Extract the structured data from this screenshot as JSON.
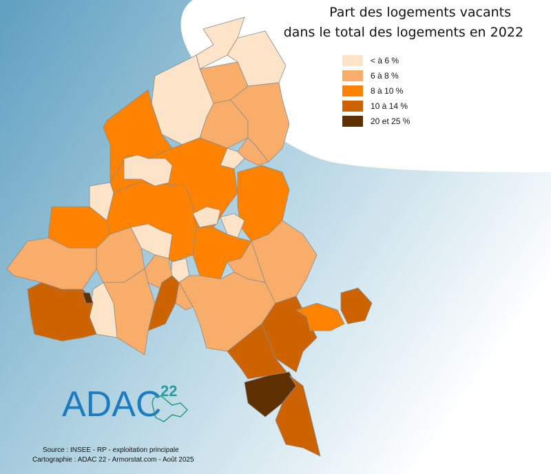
{
  "title_lines": [
    "Part des logements vacants",
    "dans le total des logements en 2022"
  ],
  "legend": [
    {
      "label": "< à 6 %",
      "color": "#fde4c8"
    },
    {
      "label": "6 à 8 %",
      "color": "#f9ad6a"
    },
    {
      "label": "8 à 10 %",
      "color": "#ff8200"
    },
    {
      "label": "10 à 14 %",
      "color": "#cc6300"
    },
    {
      "label": "20 et 25 %",
      "color": "#5e2f00"
    }
  ],
  "logo": {
    "name": "ADAC",
    "number": "22"
  },
  "source_lines": [
    "Source : INSEE - RP - exploitation principale",
    "Cartographie : ADAC 22 - Armorstat.com - Août 2025"
  ]
}
